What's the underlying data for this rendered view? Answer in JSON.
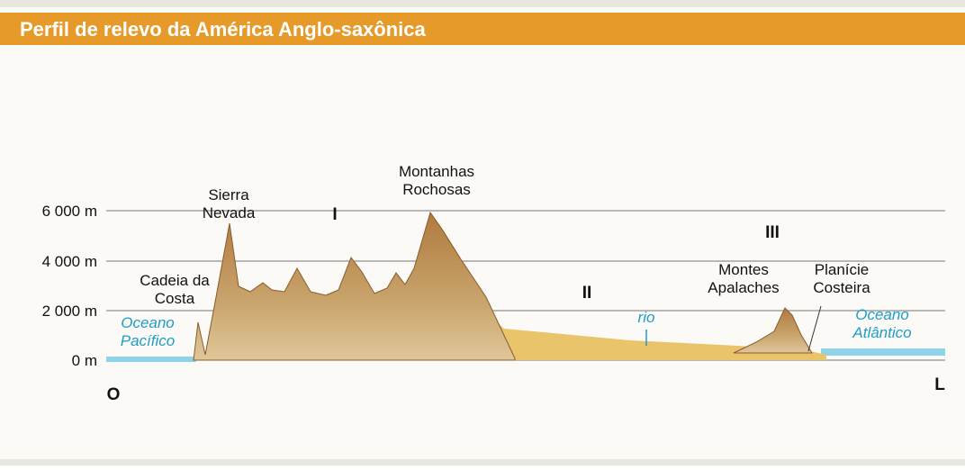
{
  "header": {
    "title": "Perfil de relevo da América Anglo-saxônica"
  },
  "axis": {
    "ticks": [
      "6 000 m",
      "4 000 m",
      "2 000 m",
      "0 m"
    ]
  },
  "labels": {
    "sierra_nevada": [
      "Sierra",
      "Nevada"
    ],
    "cadeia_da_costa": [
      "Cadeia da",
      "Costa"
    ],
    "montanhas_rochosas": [
      "Montanhas",
      "Rochosas"
    ],
    "montes_apalaches": [
      "Montes",
      "Apalaches"
    ],
    "planicie_costeira": [
      "Planície",
      "Costeira"
    ],
    "oceano_pacifico": [
      "Oceano",
      "Pacífico"
    ],
    "oceano_atlantico": [
      "Oceano",
      "Atlântico"
    ],
    "rio": "rio",
    "region_1": "I",
    "region_2": "II",
    "region_3": "III"
  },
  "directions": {
    "west": "O",
    "east": "L"
  }
}
